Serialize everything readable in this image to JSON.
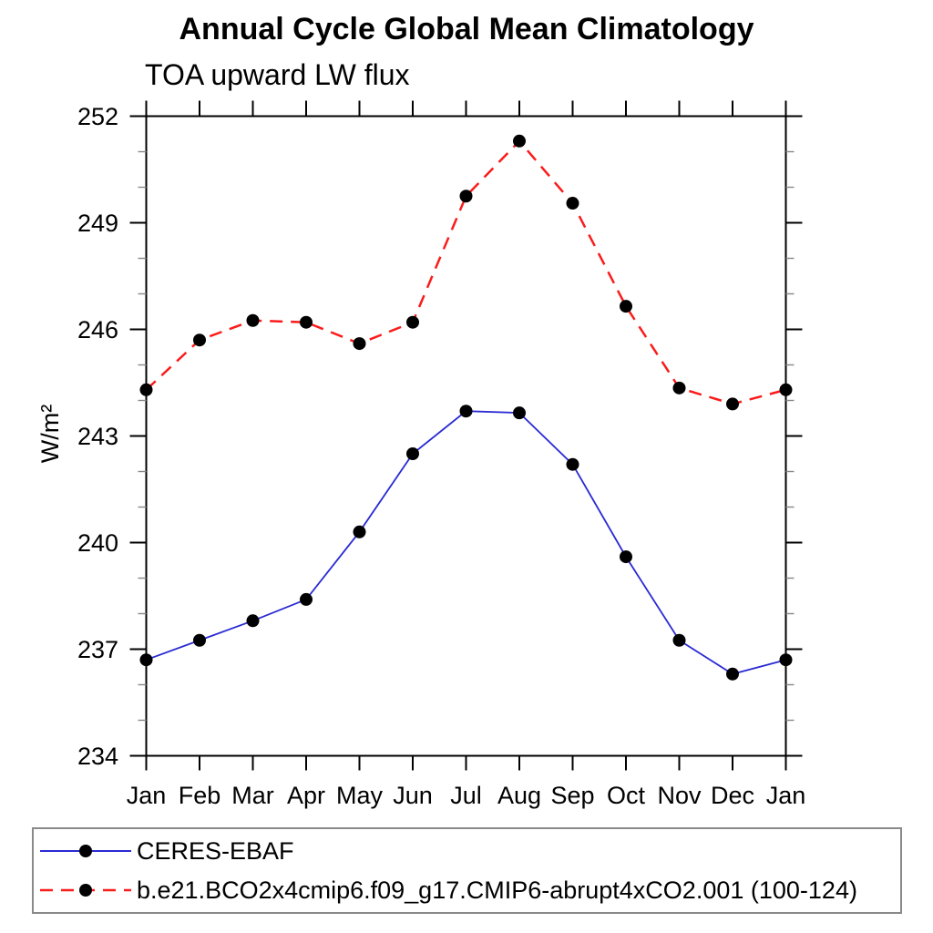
{
  "chart_data": {
    "type": "line",
    "title": "Annual Cycle Global Mean Climatology",
    "subtitle": "TOA upward LW flux",
    "ylabel": "W/m²",
    "xlabel": "",
    "categories": [
      "Jan",
      "Feb",
      "Mar",
      "Apr",
      "May",
      "Jun",
      "Jul",
      "Aug",
      "Sep",
      "Oct",
      "Nov",
      "Dec",
      "Jan"
    ],
    "ylim": [
      234,
      252
    ],
    "ytick_major_interval": 3,
    "ytick_minor_interval": 1,
    "grid": false,
    "legend_position": "bottom-left-box",
    "series": [
      {
        "name": "CERES-EBAF",
        "color": "#2a2ad4",
        "line_style": "solid",
        "marker": "filled-circle",
        "marker_color": "#000000",
        "values": [
          236.7,
          237.25,
          237.8,
          238.4,
          240.3,
          242.5,
          243.7,
          243.65,
          242.2,
          239.6,
          237.25,
          236.3,
          236.7
        ]
      },
      {
        "name": "b.e21.BCO2x4cmip6.f09_g17.CMIP6-abrupt4xCO2.001 (100-124)",
        "color": "#fb1b1b",
        "line_style": "dashed",
        "marker": "filled-circle",
        "marker_color": "#000000",
        "values": [
          244.3,
          245.7,
          246.25,
          246.2,
          245.6,
          246.2,
          249.75,
          251.3,
          249.55,
          246.65,
          244.35,
          243.9,
          244.3
        ]
      }
    ],
    "colors": {
      "background": "#ffffff",
      "text": "#000000",
      "axis": "#000000",
      "minor_tick": "#888888",
      "legend_border": "#8a8a8a"
    }
  }
}
